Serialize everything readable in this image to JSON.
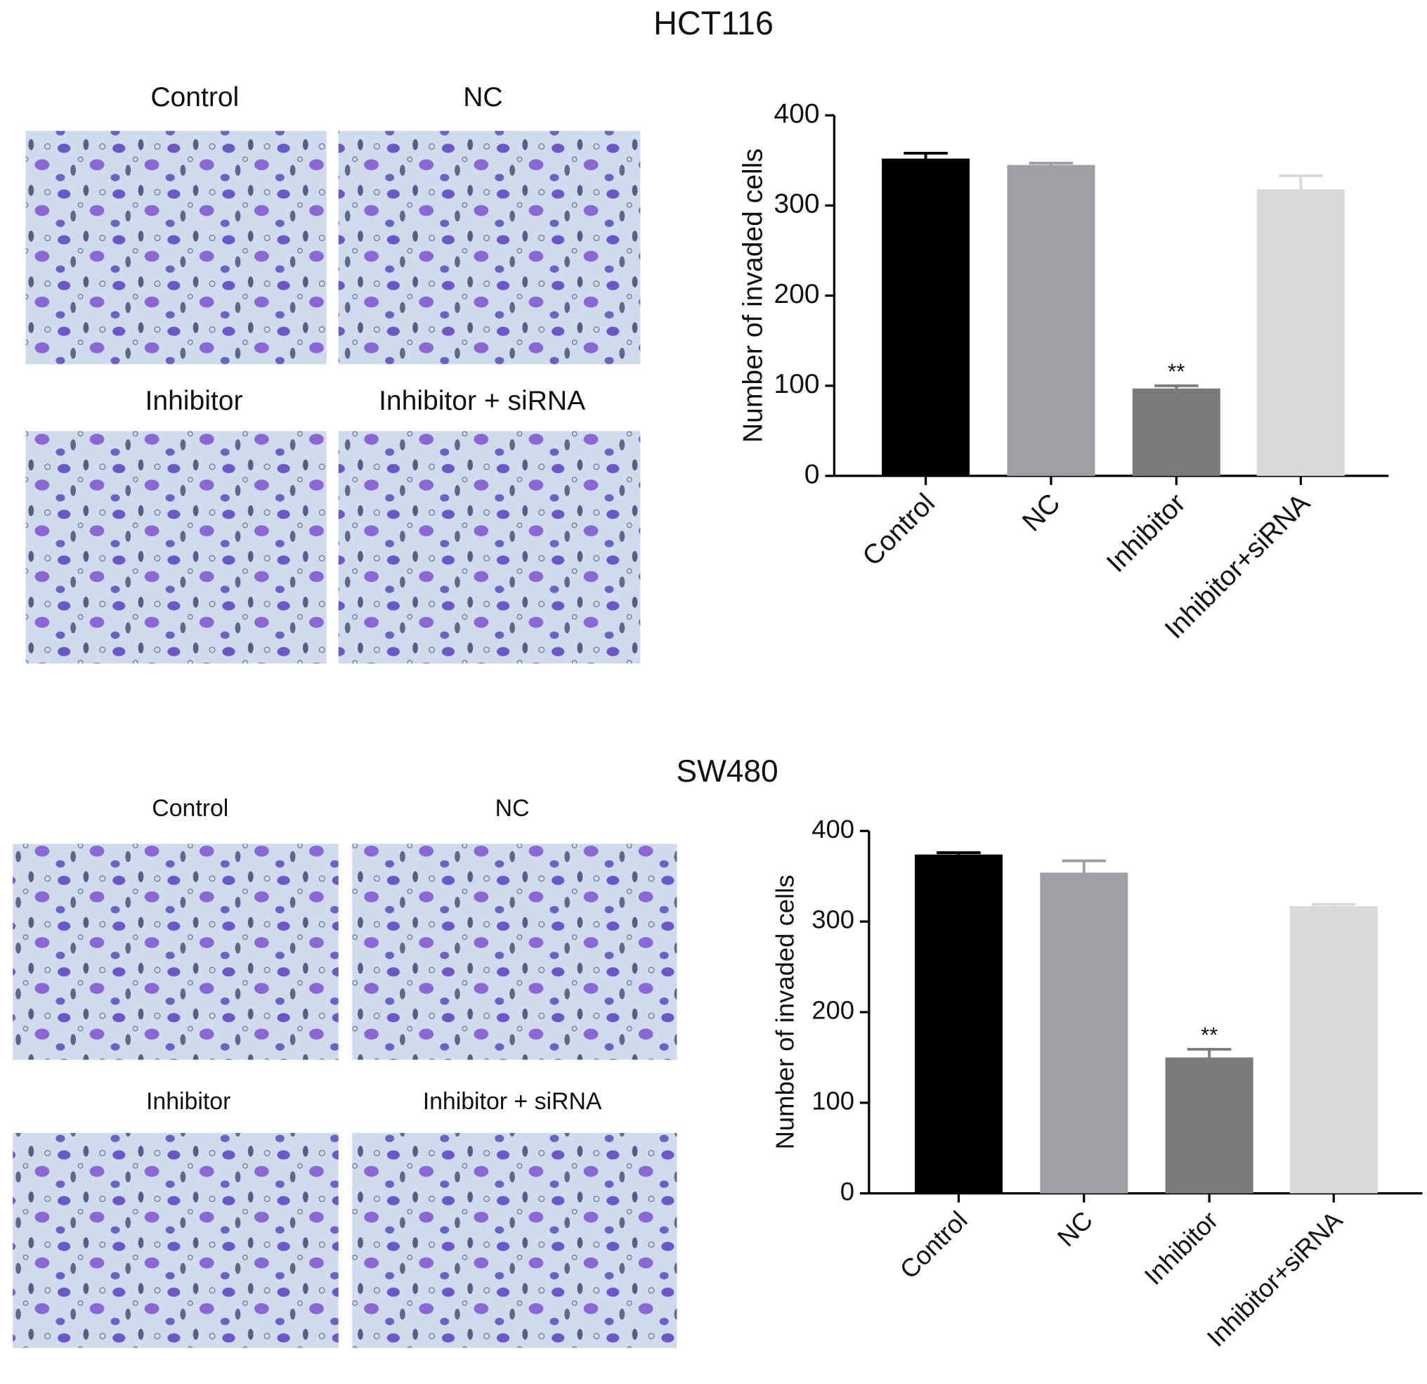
{
  "micrographs": [
    {
      "labels": [
        "Control",
        "NC",
        "Inhibitor",
        "Inhibitor + siRNA"
      ]
    },
    {
      "labels": [
        "Control",
        "NC",
        "Inhibitor",
        "Inhibitor + siRNA"
      ]
    }
  ],
  "chart_data": [
    {
      "type": "bar",
      "title": "HCT116",
      "ylabel": "Number of invaded cells",
      "categories": [
        "Control",
        "NC",
        "Inhibitor",
        "Inhibitor+siRNA"
      ],
      "values": [
        352,
        345,
        97,
        318
      ],
      "errors": [
        6,
        2,
        3,
        15
      ],
      "colors": [
        "#000000",
        "#a0a0a4",
        "#7b7b7b",
        "#d9d9d9"
      ],
      "annotations": [
        {
          "text": "**",
          "category": "Inhibitor"
        }
      ],
      "ylim": [
        0,
        400
      ],
      "yticks": [
        0,
        100,
        200,
        300,
        400
      ]
    },
    {
      "type": "bar",
      "title": "SW480",
      "ylabel": "Number of invaded cells",
      "categories": [
        "Control",
        "NC",
        "Inhibitor",
        "Inhibitor+siRNA"
      ],
      "values": [
        374,
        354,
        150,
        317
      ],
      "errors": [
        2,
        13,
        9,
        2
      ],
      "colors": [
        "#000000",
        "#a0a0a4",
        "#7b7b7b",
        "#d9d9d9"
      ],
      "annotations": [
        {
          "text": "**",
          "category": "Inhibitor"
        }
      ],
      "ylim": [
        0,
        400
      ],
      "yticks": [
        0,
        100,
        200,
        300,
        400
      ]
    }
  ]
}
